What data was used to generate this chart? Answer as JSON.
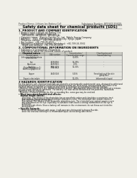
{
  "bg_color": "#f0efe8",
  "title": "Safety data sheet for chemical products (SDS)",
  "header_left": "Product Name: Lithium Ion Battery Cell",
  "header_right_line1": "Substance Number: BPXXXX-XXXXX",
  "header_right_line2": "Established / Revision: Dec.1.2010",
  "section1_title": "1. PRODUCT AND COMPANY IDENTIFICATION",
  "section1_lines": [
    "• Product name: Lithium Ion Battery Cell",
    "• Product code: Cylindrical-type cell",
    "    (IHF18650U, IHF18650L, IHF18650A)",
    "• Company name:   Bansyo Denchu Co., Ltd.  Mobile Energy Company",
    "• Address:    2021  Kamimaruko, Sumoto-City, Hyogo, Japan",
    "• Telephone number:   +81-799-26-4111",
    "• Fax number:  +81-799-26-4120",
    "• Emergency telephone number (Weekdays): +81-799-26-3962",
    "    (Night and holidays): +81-799-26-4101"
  ],
  "section2_title": "2. COMPOSITIONAL INFORMATION ON INGREDIENTS",
  "section2_sub1": "• Substance or preparation: Preparation",
  "section2_sub2": "• Information about the chemical nature of product:",
  "table_col0_top": "Chemical nature",
  "table_col0_bot": "Several name",
  "table_col1": "CAS number",
  "table_col2a": "Concentration /",
  "table_col2b": "Concentration range",
  "table_col3a": "Classification and",
  "table_col3b": "hazard labeling",
  "table_rows": [
    [
      "Lithium cobalt tantalate",
      "-",
      "30-60%",
      ""
    ],
    [
      "(LiMn-CoTiO4)",
      "",
      "",
      ""
    ],
    [
      "Iron",
      "7439-89-6",
      "15-25%",
      ""
    ],
    [
      "Aluminum",
      "7429-90-5",
      "2-5%",
      ""
    ],
    [
      "Graphite",
      "",
      "10-30%",
      ""
    ],
    [
      "(Flake or graphite-1)",
      "7782-42-5",
      "",
      ""
    ],
    [
      "(Artificial graphite-1)",
      "7782-44-2",
      "",
      ""
    ],
    [
      "Copper",
      "7440-50-8",
      "5-15%",
      "Sensitization of the skin"
    ],
    [
      "",
      "",
      "",
      "group No.2"
    ],
    [
      "Organic electrolyte",
      "-",
      "10-20%",
      "Inflammable liquid"
    ]
  ],
  "section3_title": "3 HAZARDS IDENTIFICATION",
  "section3_text": [
    "For this battery cell, chemical materials are stored in a hermetically sealed metal case, designed to withstand",
    "temperatures and pressures encountered during normal use. As a result, during normal use, there is no",
    "physical danger of ignition or explosion and there is no danger of hazardous materials leakage.",
    "  However, if exposed to a fire, added mechanical shocks, decomposed, when electric wires/circuitry misuse,",
    "the gas inside cannot be operated. The battery cell case will be breached at fire patterns, hazardous",
    "materials may be released.",
    "  Moreover, if heated strongly by the surrounding fire, some gas may be emitted."
  ],
  "bullet_effects": "• Most important hazard and effects:",
  "human_health": "Human health effects:",
  "human_lines": [
    "  Inhalation: The release of the electrolyte has an anesthetic action and stimulates a respiratory tract.",
    "  Skin contact: The release of the electrolyte stimulates a skin. The electrolyte skin contact causes a",
    "  sore and stimulation on the skin.",
    "  Eye contact: The release of the electrolyte stimulates eyes. The electrolyte eye contact causes a sore",
    "  and stimulation on the eye. Especially, a substance that causes a strong inflammation of the eye is",
    "  contained.",
    "  Environmental effects: Since a battery cell remains in the environment, do not throw out it into the",
    "  environment."
  ],
  "bullet_specific": "• Specific hazards:",
  "specific_lines": [
    "  If the electrolyte contacts with water, it will generate detrimental hydrogen fluoride.",
    "  Since the seal and electrolyte is inflammable liquid, do not bring close to fire."
  ]
}
